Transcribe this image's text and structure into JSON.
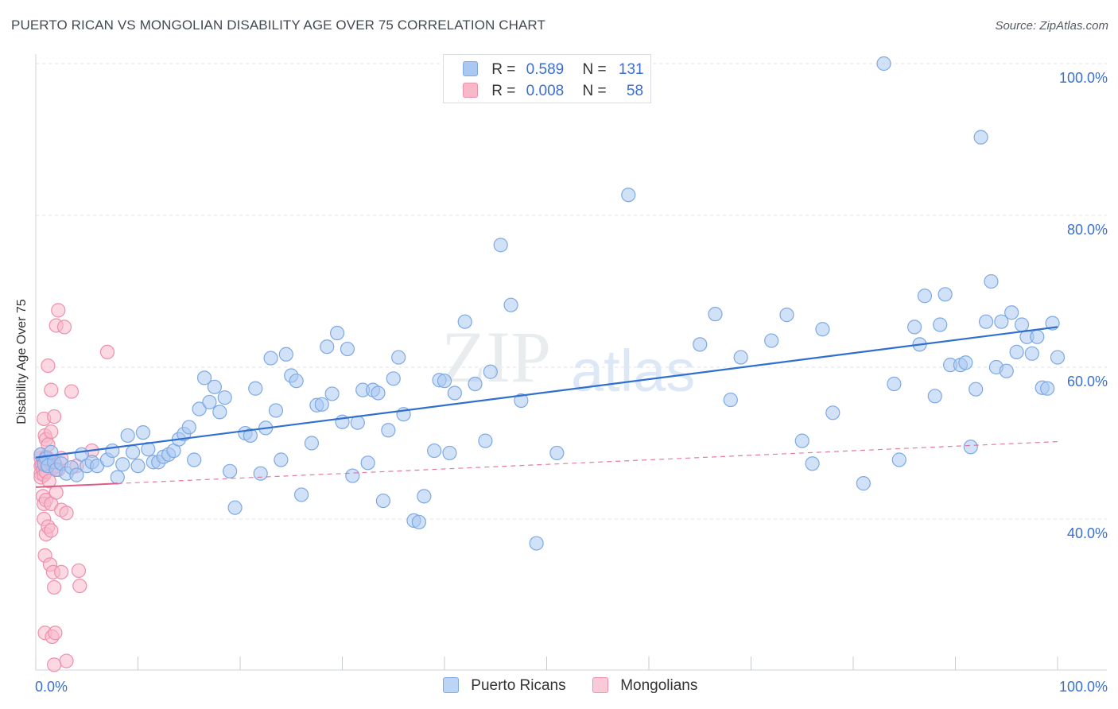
{
  "header": {
    "title": "PUERTO RICAN VS MONGOLIAN DISABILITY AGE OVER 75 CORRELATION CHART",
    "source": "Source: ZipAtlas.com"
  },
  "watermark": {
    "zip": "ZIP",
    "atlas": "atlas"
  },
  "colors": {
    "blue_fill": "#a9c8f2",
    "blue_stroke": "#7ea9e3",
    "blue_line": "#2f6fd0",
    "pink_fill": "#f7b8ca",
    "pink_stroke": "#ee8fac",
    "pink_line": "#e05a88",
    "axis_text": "#3a6fd1",
    "grid": "#dfe3e8"
  },
  "stats_legend": {
    "rows": [
      {
        "r_label": "R =",
        "r_value": "0.589",
        "n_label": "N =",
        "n_value": "131",
        "color": "blue"
      },
      {
        "r_label": "R =",
        "r_value": "0.008",
        "n_label": "N =",
        "n_value": "58",
        "color": "pink"
      }
    ]
  },
  "bottom_legend": {
    "items": [
      "Puerto Ricans",
      "Mongolians"
    ]
  },
  "chart_data": {
    "type": "scatter",
    "title": "PUERTO RICAN VS MONGOLIAN DISABILITY AGE OVER 75 CORRELATION CHART",
    "xlabel": "",
    "ylabel": "Disability Age Over 75",
    "xlim": [
      0,
      100
    ],
    "ylim": [
      20,
      102
    ],
    "x_tick_labels": [
      "0.0%",
      "100.0%"
    ],
    "y_tick_values": [
      40,
      60,
      80,
      100
    ],
    "y_tick_labels": [
      "40.0%",
      "60.0%",
      "80.0%",
      "100.0%"
    ],
    "grid": true,
    "legend_position": "bottom-center",
    "series": [
      {
        "name": "Puerto Ricans",
        "color": "#a9c8f2",
        "trend": {
          "x": [
            0,
            100
          ],
          "y": [
            48.1,
            65.3
          ],
          "style": "solid"
        },
        "points": [
          [
            0.5,
            48.5
          ],
          [
            0.8,
            47.2
          ],
          [
            1.0,
            48.0
          ],
          [
            1.2,
            47.0
          ],
          [
            1.5,
            48.8
          ],
          [
            1.8,
            47.5
          ],
          [
            2.0,
            46.5
          ],
          [
            2.5,
            47.3
          ],
          [
            3.0,
            46.0
          ],
          [
            3.5,
            46.8
          ],
          [
            4.0,
            45.8
          ],
          [
            4.5,
            48.5
          ],
          [
            5.0,
            47.0
          ],
          [
            5.5,
            47.5
          ],
          [
            6.0,
            47.0
          ],
          [
            7.0,
            47.8
          ],
          [
            7.5,
            49.0
          ],
          [
            8.0,
            45.5
          ],
          [
            8.5,
            47.2
          ],
          [
            9.0,
            51.0
          ],
          [
            9.5,
            48.8
          ],
          [
            10.0,
            47.0
          ],
          [
            10.5,
            51.4
          ],
          [
            11.0,
            49.2
          ],
          [
            11.5,
            47.5
          ],
          [
            12.0,
            47.5
          ],
          [
            12.5,
            48.2
          ],
          [
            13.0,
            48.5
          ],
          [
            13.5,
            49.0
          ],
          [
            14.0,
            50.5
          ],
          [
            14.5,
            51.2
          ],
          [
            15.0,
            52.1
          ],
          [
            15.5,
            47.8
          ],
          [
            16.0,
            54.5
          ],
          [
            16.5,
            58.6
          ],
          [
            17.0,
            55.4
          ],
          [
            17.5,
            57.4
          ],
          [
            18.0,
            54.1
          ],
          [
            18.5,
            56.0
          ],
          [
            19.0,
            46.3
          ],
          [
            19.5,
            41.5
          ],
          [
            20.5,
            51.3
          ],
          [
            21.0,
            51.0
          ],
          [
            21.5,
            57.2
          ],
          [
            22.0,
            46.0
          ],
          [
            22.5,
            52.0
          ],
          [
            23.0,
            61.2
          ],
          [
            23.5,
            54.3
          ],
          [
            24.0,
            47.8
          ],
          [
            24.5,
            61.7
          ],
          [
            25.0,
            58.9
          ],
          [
            25.5,
            58.2
          ],
          [
            26.0,
            43.2
          ],
          [
            27.0,
            50.0
          ],
          [
            27.5,
            55.0
          ],
          [
            28.0,
            55.1
          ],
          [
            28.5,
            62.7
          ],
          [
            29.0,
            56.5
          ],
          [
            29.5,
            64.5
          ],
          [
            30.0,
            52.8
          ],
          [
            30.5,
            62.4
          ],
          [
            31.0,
            45.7
          ],
          [
            31.5,
            52.7
          ],
          [
            32.0,
            57.0
          ],
          [
            32.5,
            47.4
          ],
          [
            33.0,
            57.0
          ],
          [
            33.5,
            56.6
          ],
          [
            34.0,
            42.4
          ],
          [
            34.5,
            51.7
          ],
          [
            35.0,
            58.5
          ],
          [
            35.5,
            61.3
          ],
          [
            36.0,
            53.8
          ],
          [
            37.0,
            39.8
          ],
          [
            37.5,
            39.6
          ],
          [
            38.0,
            43.0
          ],
          [
            39.0,
            49.0
          ],
          [
            39.5,
            58.3
          ],
          [
            40.0,
            58.2
          ],
          [
            40.5,
            48.7
          ],
          [
            41.0,
            56.6
          ],
          [
            42.0,
            66.0
          ],
          [
            43.0,
            57.8
          ],
          [
            44.0,
            50.3
          ],
          [
            44.5,
            59.4
          ],
          [
            45.5,
            76.1
          ],
          [
            46.5,
            68.2
          ],
          [
            47.5,
            55.6
          ],
          [
            49.0,
            36.8
          ],
          [
            51.0,
            48.7
          ],
          [
            58.0,
            82.7
          ],
          [
            65.0,
            63.0
          ],
          [
            66.5,
            67.0
          ],
          [
            68.0,
            55.7
          ],
          [
            69.0,
            61.3
          ],
          [
            72.0,
            63.5
          ],
          [
            73.5,
            66.9
          ],
          [
            75.0,
            50.3
          ],
          [
            76.0,
            47.3
          ],
          [
            77.0,
            65.0
          ],
          [
            78.0,
            54.0
          ],
          [
            81.0,
            44.7
          ],
          [
            83.0,
            100.0
          ],
          [
            84.0,
            57.8
          ],
          [
            84.5,
            47.8
          ],
          [
            86.0,
            65.3
          ],
          [
            86.5,
            63.0
          ],
          [
            87.0,
            69.4
          ],
          [
            88.0,
            56.2
          ],
          [
            88.5,
            65.6
          ],
          [
            89.0,
            69.6
          ],
          [
            89.5,
            60.3
          ],
          [
            90.5,
            60.3
          ],
          [
            91.0,
            60.6
          ],
          [
            91.5,
            49.5
          ],
          [
            92.0,
            57.1
          ],
          [
            92.5,
            90.3
          ],
          [
            93.0,
            66.0
          ],
          [
            93.5,
            71.3
          ],
          [
            94.0,
            60.0
          ],
          [
            94.5,
            66.0
          ],
          [
            95.0,
            59.5
          ],
          [
            95.5,
            67.2
          ],
          [
            96.0,
            62.0
          ],
          [
            96.5,
            65.6
          ],
          [
            97.0,
            64.0
          ],
          [
            97.5,
            61.8
          ],
          [
            98.0,
            64.0
          ],
          [
            98.5,
            57.3
          ],
          [
            99.0,
            57.2
          ],
          [
            99.5,
            65.8
          ],
          [
            100.0,
            61.3
          ]
        ]
      },
      {
        "name": "Mongolians",
        "color": "#f7b8ca",
        "trend": {
          "x": [
            0,
            100
          ],
          "y": [
            44.2,
            50.2
          ],
          "style": "solid to x=8, dashed beyond"
        },
        "points": [
          [
            0.5,
            48.0
          ],
          [
            0.5,
            47.0
          ],
          [
            0.5,
            46.0
          ],
          [
            0.5,
            45.5
          ],
          [
            0.5,
            48.5
          ],
          [
            0.6,
            47.2
          ],
          [
            0.7,
            46.5
          ],
          [
            0.8,
            47.5
          ],
          [
            0.8,
            45.8
          ],
          [
            0.9,
            47.8
          ],
          [
            1.0,
            48.2
          ],
          [
            1.0,
            46.2
          ],
          [
            1.1,
            47.0
          ],
          [
            1.2,
            48.0
          ],
          [
            1.3,
            45.0
          ],
          [
            1.5,
            47.5
          ],
          [
            1.8,
            46.8
          ],
          [
            2.0,
            47.0
          ],
          [
            2.2,
            46.5
          ],
          [
            2.5,
            48.0
          ],
          [
            0.8,
            53.2
          ],
          [
            0.9,
            51.0
          ],
          [
            1.0,
            50.5
          ],
          [
            1.2,
            49.8
          ],
          [
            1.2,
            60.2
          ],
          [
            1.5,
            57.0
          ],
          [
            1.5,
            51.5
          ],
          [
            1.8,
            53.5
          ],
          [
            2.0,
            65.5
          ],
          [
            2.2,
            67.5
          ],
          [
            2.8,
            65.3
          ],
          [
            3.5,
            56.8
          ],
          [
            4.0,
            47.0
          ],
          [
            5.5,
            49.0
          ],
          [
            7.0,
            62.0
          ],
          [
            0.7,
            43.0
          ],
          [
            0.8,
            42.0
          ],
          [
            1.0,
            42.5
          ],
          [
            1.5,
            42.0
          ],
          [
            2.0,
            43.5
          ],
          [
            2.5,
            41.2
          ],
          [
            3.0,
            40.8
          ],
          [
            0.8,
            40.0
          ],
          [
            1.0,
            38.0
          ],
          [
            1.2,
            39.0
          ],
          [
            1.5,
            38.5
          ],
          [
            0.9,
            35.2
          ],
          [
            1.4,
            34.0
          ],
          [
            1.7,
            33.0
          ],
          [
            1.8,
            31.0
          ],
          [
            2.5,
            33.0
          ],
          [
            4.2,
            33.2
          ],
          [
            4.3,
            31.2
          ],
          [
            0.9,
            25.0
          ],
          [
            1.6,
            24.5
          ],
          [
            1.9,
            25.0
          ],
          [
            3.0,
            21.3
          ],
          [
            1.8,
            20.8
          ]
        ]
      }
    ]
  }
}
